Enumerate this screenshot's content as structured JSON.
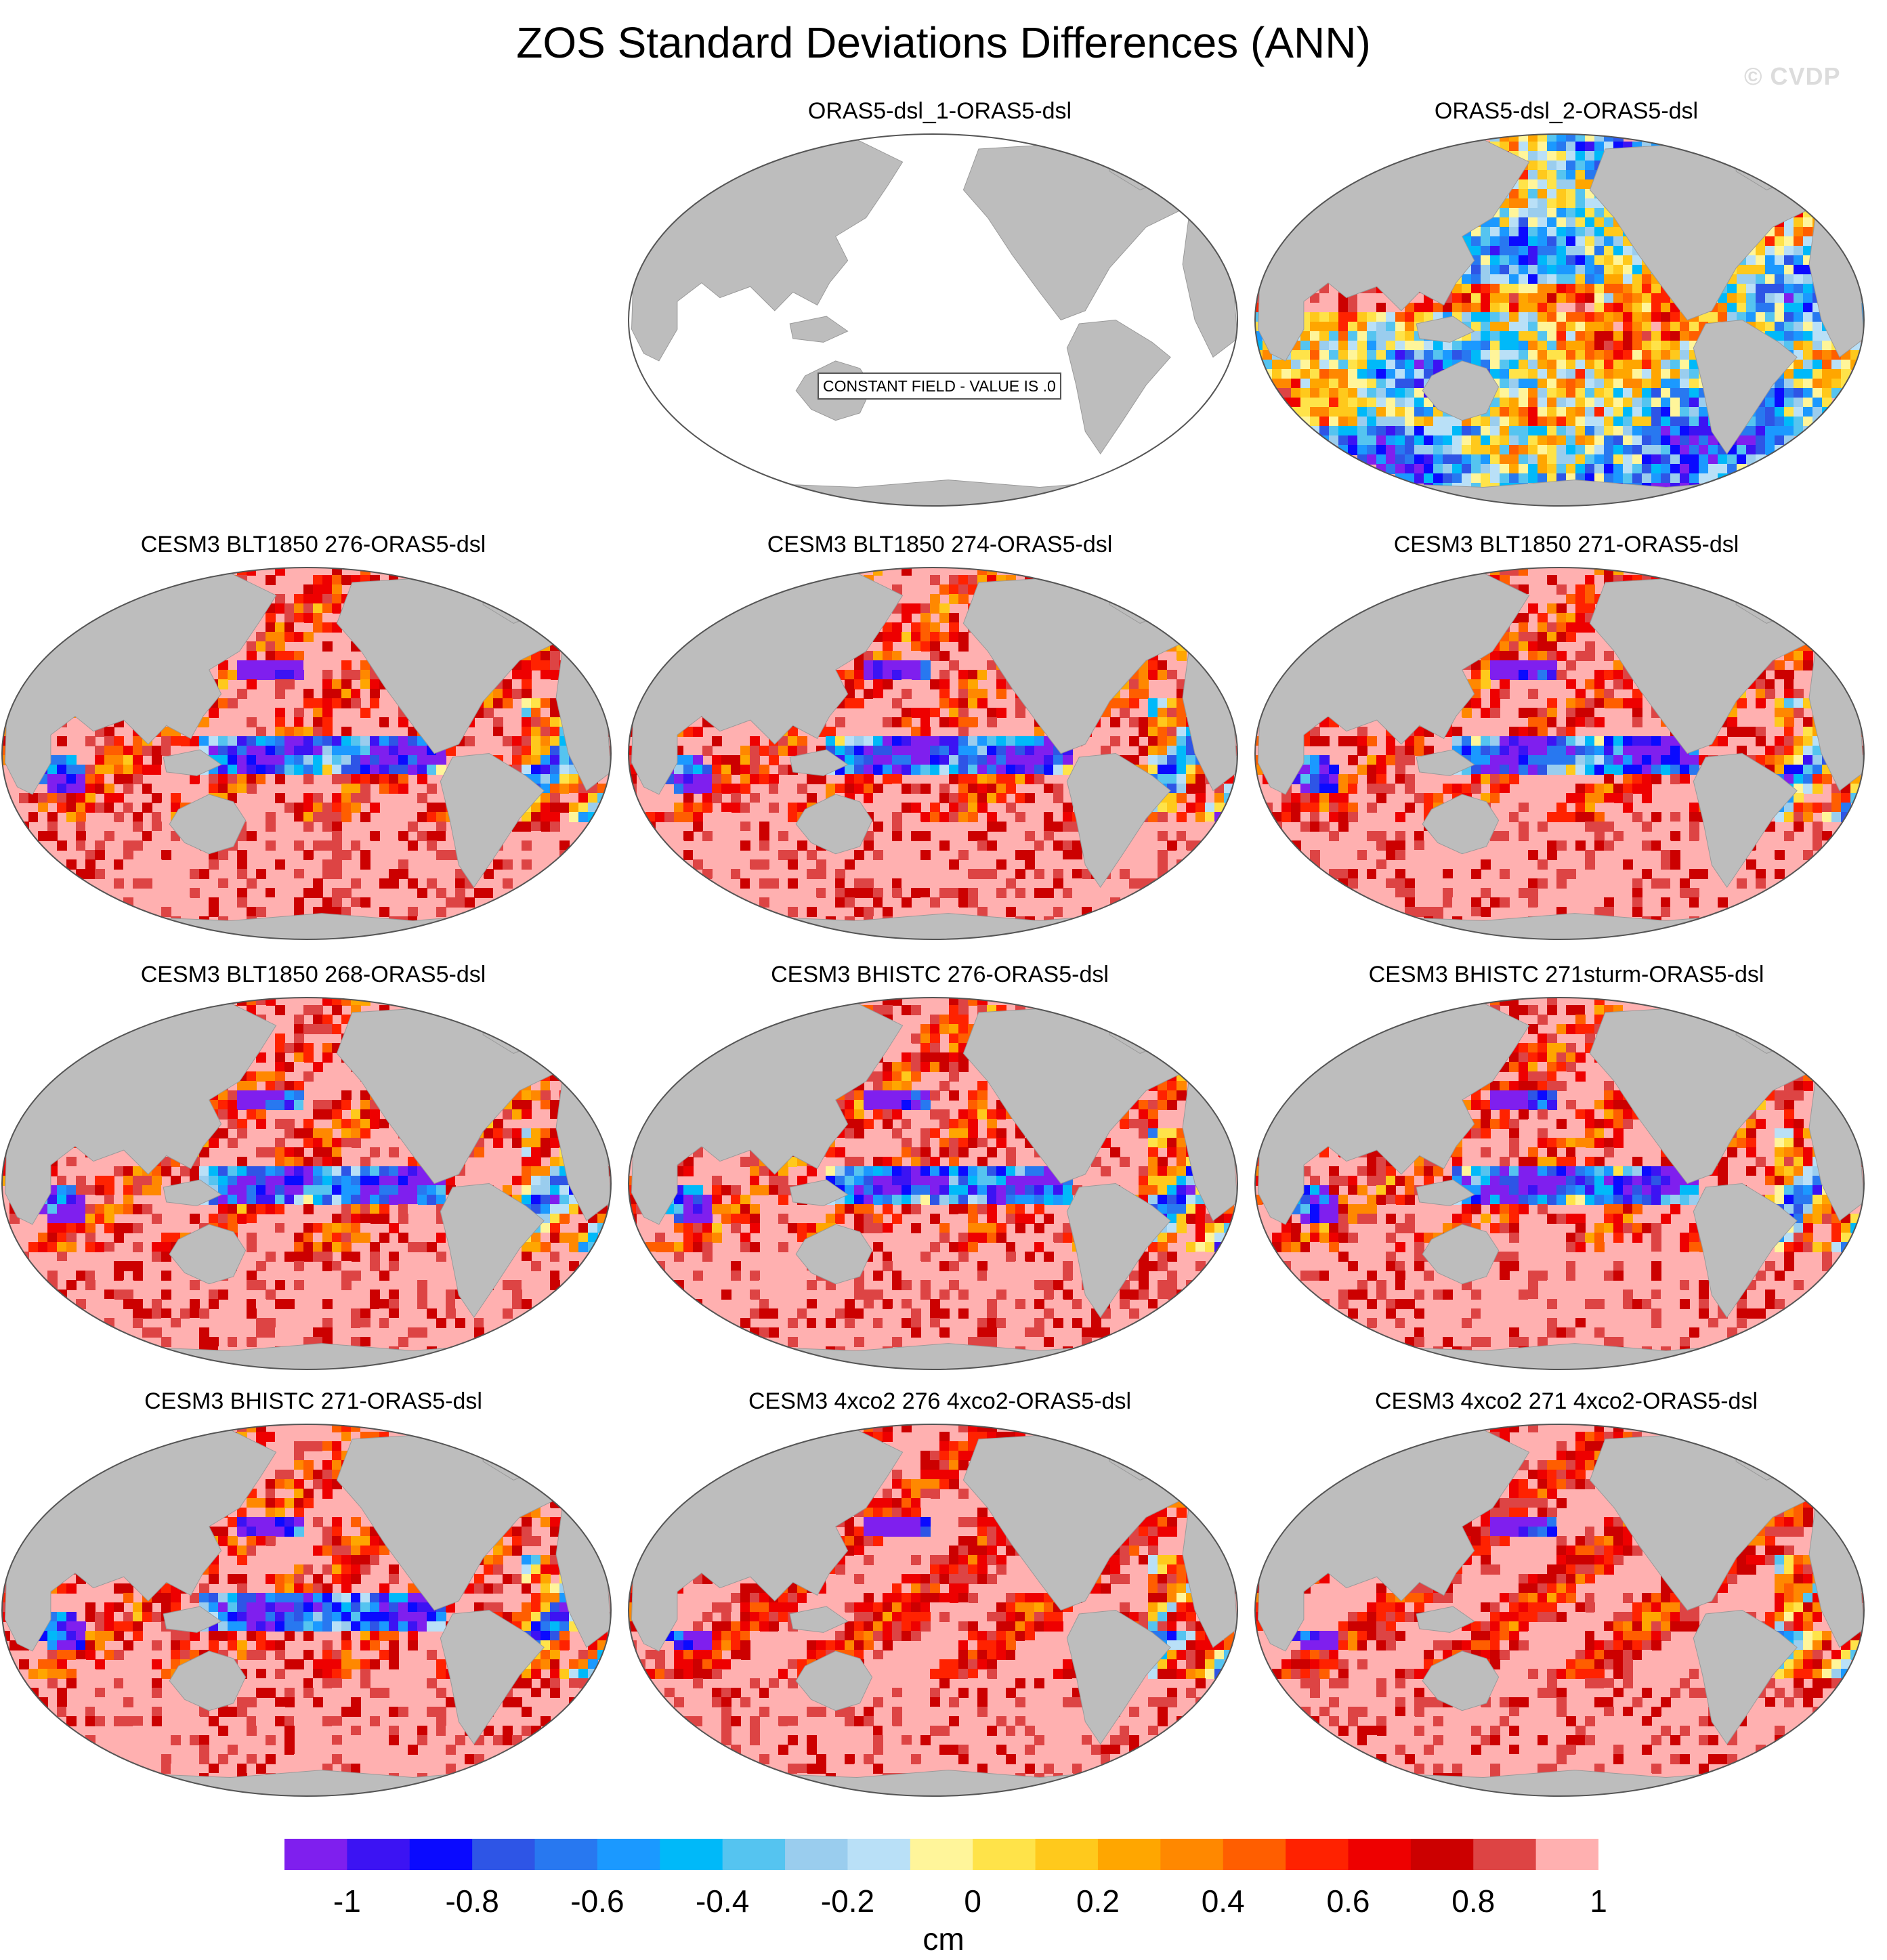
{
  "title": "ZOS Standard Deviations Differences (ANN)",
  "copyright": "© CVDP",
  "constant_field_label": "CONSTANT FIELD - VALUE IS .0",
  "panels": [
    {
      "title": "ORAS5-dsl_1-ORAS5-dsl",
      "mode": "constant"
    },
    {
      "title": "ORAS5-dsl_2-ORAS5-dsl",
      "mode": "mixed"
    },
    {
      "title": "CESM3 BLT1850 276-ORAS5-dsl",
      "mode": "model"
    },
    {
      "title": "CESM3 BLT1850 274-ORAS5-dsl",
      "mode": "model"
    },
    {
      "title": "CESM3 BLT1850 271-ORAS5-dsl",
      "mode": "model"
    },
    {
      "title": "CESM3 BLT1850 268-ORAS5-dsl",
      "mode": "model"
    },
    {
      "title": "CESM3 BHISTC 276-ORAS5-dsl",
      "mode": "model"
    },
    {
      "title": "CESM3 BHISTC 271sturm-ORAS5-dsl",
      "mode": "model"
    },
    {
      "title": "CESM3 BHISTC 271-ORAS5-dsl",
      "mode": "model"
    },
    {
      "title": "CESM3 4xco2 276 4xco2-ORAS5-dsl",
      "mode": "warm"
    },
    {
      "title": "CESM3 4xco2 271 4xco2-ORAS5-dsl",
      "mode": "warm"
    }
  ],
  "colorbar": {
    "colors": [
      "#7f1fee",
      "#3c13f3",
      "#0a0aff",
      "#2e55e6",
      "#2878f0",
      "#1b99ff",
      "#00b9f9",
      "#55c4f0",
      "#9acdee",
      "#b9e0f7",
      "#fff59a",
      "#ffe349",
      "#ffc91c",
      "#ffa600",
      "#ff8800",
      "#ff5e00",
      "#ff2200",
      "#ee0000",
      "#cc0000",
      "#dd4444",
      "#ffb0b0"
    ],
    "tick_labels": [
      "-1",
      "-0.8",
      "-0.6",
      "-0.4",
      "-0.2",
      "0",
      "0.2",
      "0.4",
      "0.6",
      "0.8",
      "1"
    ],
    "unit": "cm"
  },
  "colors": {
    "land": "#bdbdbd",
    "ocean_constant": "#ffffff",
    "saturated_positive": "#ffb0b0"
  }
}
